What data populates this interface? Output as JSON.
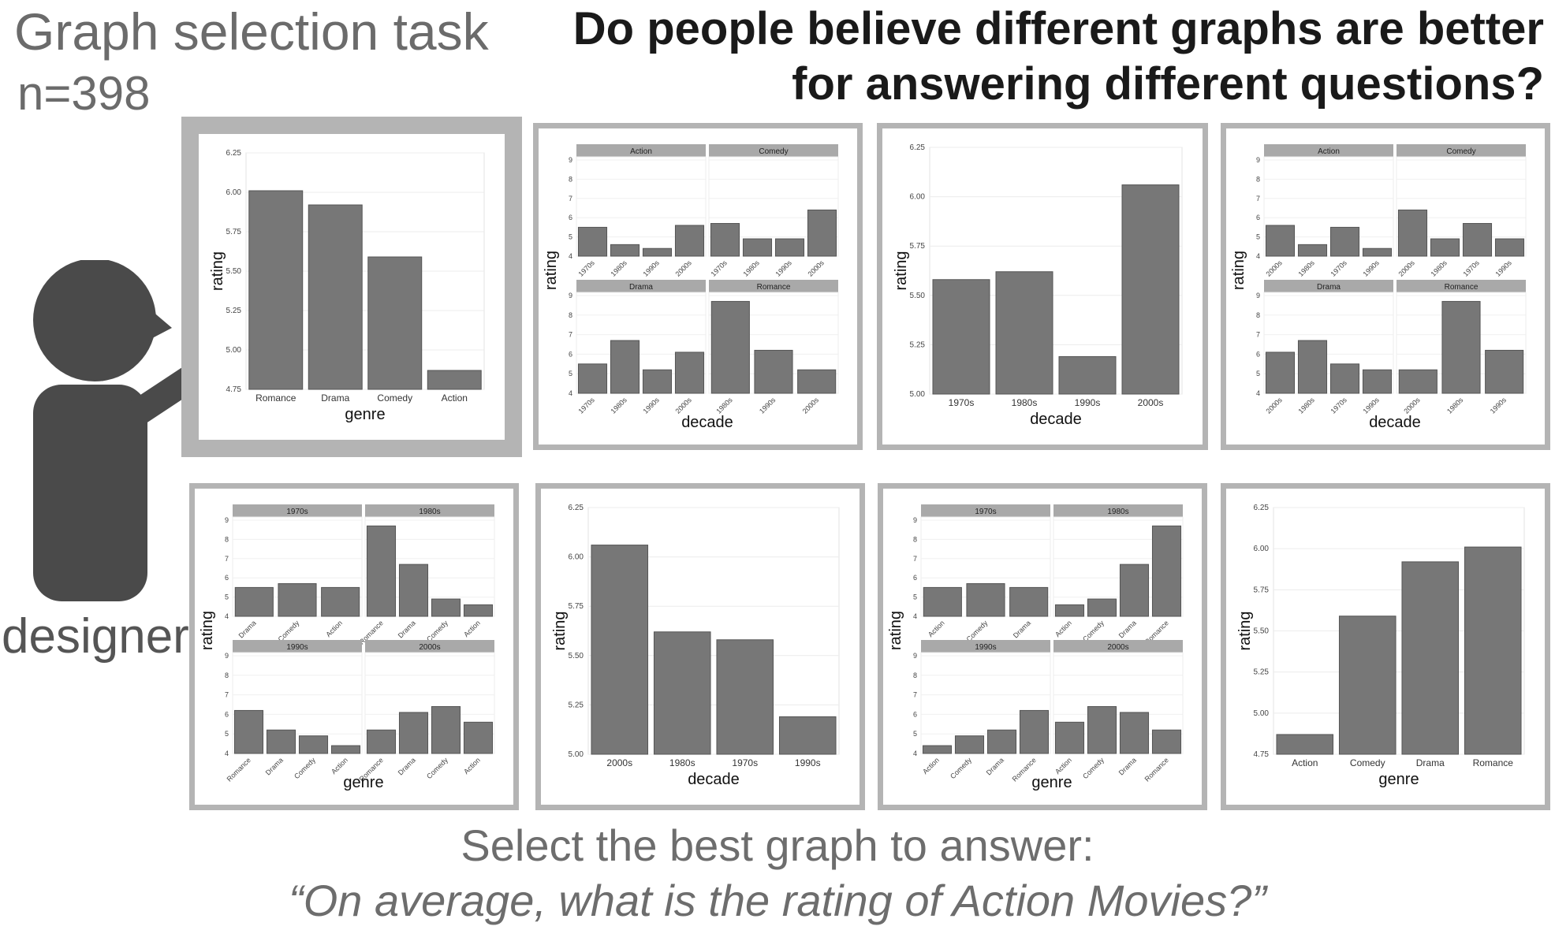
{
  "header": {
    "task_title": "Graph selection task",
    "sample_size": "n=398",
    "headline": "Do people believe different graphs are better for answering different questions?"
  },
  "figure": {
    "designer_label": "designer",
    "person_icon": "person-pointing-icon",
    "prompt": "Select the best graph to answer:",
    "question": "“On average, what is the rating of Action Movies?”"
  },
  "colors": {
    "bar": "#777777",
    "strip": "#a9a9a9",
    "frame": "#b4b4b4",
    "person": "#4a4a4a"
  },
  "chart_data": [
    {
      "type": "bar",
      "selected": true,
      "ylabel": "rating",
      "xlabel": "genre",
      "ylim": [
        4.75,
        6.25
      ],
      "yticks": [
        "4.75",
        "5.00",
        "5.25",
        "5.50",
        "5.75",
        "6.00",
        "6.25"
      ],
      "categories": [
        "Romance",
        "Drama",
        "Comedy",
        "Action"
      ],
      "values": [
        6.01,
        5.92,
        5.59,
        4.87
      ]
    },
    {
      "type": "bar",
      "facets": true,
      "ylabel": "rating",
      "xlabel": "decade",
      "ylim": [
        4,
        9
      ],
      "yticks": [
        "4",
        "5",
        "6",
        "7",
        "8",
        "9"
      ],
      "panels": [
        {
          "title": "Action",
          "categories": [
            "1970s",
            "1980s",
            "1990s",
            "2000s"
          ],
          "values": [
            5.5,
            4.6,
            4.4,
            5.6
          ]
        },
        {
          "title": "Comedy",
          "categories": [
            "1970s",
            "1980s",
            "1990s",
            "2000s"
          ],
          "values": [
            5.7,
            4.9,
            4.9,
            6.4
          ]
        },
        {
          "title": "Drama",
          "categories": [
            "1970s",
            "1980s",
            "1990s",
            "2000s"
          ],
          "values": [
            5.5,
            6.7,
            5.2,
            6.1
          ]
        },
        {
          "title": "Romance",
          "categories": [
            "1980s",
            "1990s",
            "2000s"
          ],
          "values": [
            8.7,
            6.2,
            5.2
          ]
        }
      ]
    },
    {
      "type": "bar",
      "ylabel": "rating",
      "xlabel": "decade",
      "ylim": [
        5.0,
        6.25
      ],
      "yticks": [
        "5.00",
        "5.25",
        "5.50",
        "5.75",
        "6.00",
        "6.25"
      ],
      "categories": [
        "1970s",
        "1980s",
        "1990s",
        "2000s"
      ],
      "values": [
        5.58,
        5.62,
        5.19,
        6.06
      ]
    },
    {
      "type": "bar",
      "facets": true,
      "ylabel": "rating",
      "xlabel": "decade",
      "ylim": [
        4,
        9
      ],
      "yticks": [
        "4",
        "5",
        "6",
        "7",
        "8",
        "9"
      ],
      "panels": [
        {
          "title": "Action",
          "categories": [
            "2000s",
            "1980s",
            "1970s",
            "1990s"
          ],
          "values": [
            5.6,
            4.6,
            5.5,
            4.4
          ]
        },
        {
          "title": "Comedy",
          "categories": [
            "2000s",
            "1980s",
            "1970s",
            "1990s"
          ],
          "values": [
            6.4,
            4.9,
            5.7,
            4.9
          ]
        },
        {
          "title": "Drama",
          "categories": [
            "2000s",
            "1980s",
            "1970s",
            "1990s"
          ],
          "values": [
            6.1,
            6.7,
            5.5,
            5.2
          ]
        },
        {
          "title": "Romance",
          "categories": [
            "2000s",
            "1980s",
            "1990s"
          ],
          "values": [
            5.2,
            8.7,
            6.2
          ]
        }
      ]
    },
    {
      "type": "bar",
      "facets": true,
      "ylabel": "rating",
      "xlabel": "genre",
      "ylim": [
        4,
        9
      ],
      "yticks": [
        "4",
        "5",
        "6",
        "7",
        "8",
        "9"
      ],
      "panels": [
        {
          "title": "1970s",
          "categories": [
            "Drama",
            "Comedy",
            "Action"
          ],
          "values": [
            5.5,
            5.7,
            5.5
          ]
        },
        {
          "title": "1980s",
          "categories": [
            "Romance",
            "Drama",
            "Comedy",
            "Action"
          ],
          "values": [
            8.7,
            6.7,
            4.9,
            4.6
          ]
        },
        {
          "title": "1990s",
          "categories": [
            "Romance",
            "Drama",
            "Comedy",
            "Action"
          ],
          "values": [
            6.2,
            5.2,
            4.9,
            4.4
          ]
        },
        {
          "title": "2000s",
          "categories": [
            "Romance",
            "Drama",
            "Comedy",
            "Action"
          ],
          "values": [
            5.2,
            6.1,
            6.4,
            5.6
          ]
        }
      ]
    },
    {
      "type": "bar",
      "ylabel": "rating",
      "xlabel": "decade",
      "ylim": [
        5.0,
        6.25
      ],
      "yticks": [
        "5.00",
        "5.25",
        "5.50",
        "5.75",
        "6.00",
        "6.25"
      ],
      "categories": [
        "2000s",
        "1980s",
        "1970s",
        "1990s"
      ],
      "values": [
        6.06,
        5.62,
        5.58,
        5.19
      ]
    },
    {
      "type": "bar",
      "facets": true,
      "ylabel": "rating",
      "xlabel": "genre",
      "ylim": [
        4,
        9
      ],
      "yticks": [
        "4",
        "5",
        "6",
        "7",
        "8",
        "9"
      ],
      "panels": [
        {
          "title": "1970s",
          "categories": [
            "Action",
            "Comedy",
            "Drama"
          ],
          "values": [
            5.5,
            5.7,
            5.5
          ]
        },
        {
          "title": "1980s",
          "categories": [
            "Action",
            "Comedy",
            "Drama",
            "Romance"
          ],
          "values": [
            4.6,
            4.9,
            6.7,
            8.7
          ]
        },
        {
          "title": "1990s",
          "categories": [
            "Action",
            "Comedy",
            "Drama",
            "Romance"
          ],
          "values": [
            4.4,
            4.9,
            5.2,
            6.2
          ]
        },
        {
          "title": "2000s",
          "categories": [
            "Action",
            "Comedy",
            "Drama",
            "Romance"
          ],
          "values": [
            5.6,
            6.4,
            6.1,
            5.2
          ]
        }
      ]
    },
    {
      "type": "bar",
      "ylabel": "rating",
      "xlabel": "genre",
      "ylim": [
        4.75,
        6.25
      ],
      "yticks": [
        "4.75",
        "5.00",
        "5.25",
        "5.50",
        "5.75",
        "6.00",
        "6.25"
      ],
      "categories": [
        "Action",
        "Comedy",
        "Drama",
        "Romance"
      ],
      "values": [
        4.87,
        5.59,
        5.92,
        6.01
      ]
    }
  ]
}
